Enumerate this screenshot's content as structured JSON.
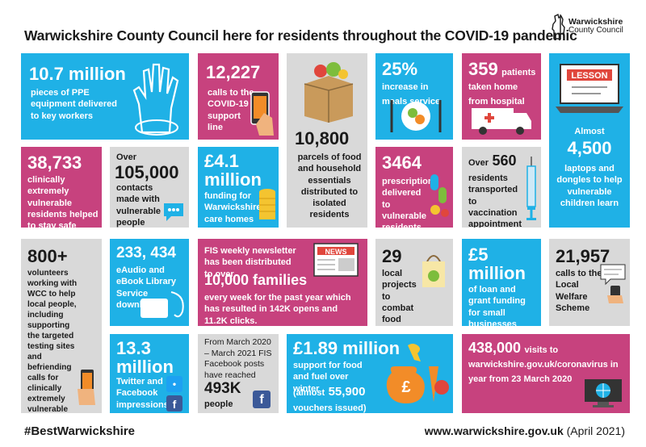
{
  "title": "Warwickshire County Council here for residents throughout the COVID-19 pandemic",
  "logo": {
    "line1": "Warwickshire",
    "line2": "County Council"
  },
  "tiles": {
    "ppe": {
      "big": "10.7 million",
      "text": "pieces of PPE equipment delivered to key workers"
    },
    "calls": {
      "big": "12,227",
      "text": "calls to the COVID-19 support line"
    },
    "parcels": {
      "big": "10,800",
      "text": "parcels of food and household essentials distributed to isolated residents"
    },
    "meals": {
      "big": "25%",
      "text": "increase in meals service"
    },
    "patients": {
      "big": "359",
      "text": "patients taken home from hospital"
    },
    "laptops": {
      "pre": "Almost",
      "big": "4,500",
      "text": "laptops and dongles to help vulnerable children learn",
      "sign": "LESSON"
    },
    "vulnerable": {
      "big": "38,733",
      "text": "clinically extremely vulnerable residents helped to stay safe"
    },
    "contacts": {
      "pre": "Over",
      "big": "105,000",
      "text": "contacts made with vulnerable people"
    },
    "funding": {
      "big": "£4.1 million",
      "text": "funding for Warwickshire care homes"
    },
    "prescriptions": {
      "big": "3464",
      "text": "prescriptions delivered to vulnerable residents"
    },
    "transport": {
      "pre": "Over",
      "big": "560",
      "text": "residents transported to vaccination appointment"
    },
    "volunteers": {
      "big": "800+",
      "text": "volunteers working with WCC to help local people, including supporting the targeted testing sites and befriending calls for clinically extremely vulnerable individuals"
    },
    "library": {
      "big": "233, 434",
      "text": "eAudio and eBook Library Service downloads"
    },
    "newsletter": {
      "text1": "FIS weekly newsletter has been distributed to over",
      "big": "10,000 families",
      "text2": "every week for the past year which has resulted in 142K opens and 11.2K clicks.",
      "sign": "NEWS"
    },
    "projects": {
      "big": "29",
      "text": "local projects to combat food poverty"
    },
    "loans": {
      "big": "£5 million",
      "text": "of loan and grant funding for small businesses"
    },
    "welfare": {
      "big": "21,957",
      "text": "calls to the Local Welfare Scheme"
    },
    "twitter": {
      "big": "13.3 million",
      "text": "Twitter and Facebook impressions"
    },
    "facebook": {
      "text": "From March 2020 – March 2021 FIS Facebook posts have reached",
      "big": "493K",
      "text2": "people"
    },
    "food": {
      "big": "£1.89 million",
      "text": "support for food and fuel over winter",
      "text3": "(almost",
      "big2": "55,900",
      "text4": "vouchers issued)"
    },
    "visits": {
      "big": "438,000",
      "text": "visits to warwickshire.gov.uk/coronavirus in year from 23 March 2020"
    }
  },
  "footer": {
    "hashtag": "#BestWarwickshire",
    "url": "www.warwickshire.gov.uk",
    "date": "(April 2021)"
  },
  "colors": {
    "blue": "#1fb1e6",
    "pink": "#c7427e",
    "grey": "#d9d9d9"
  }
}
